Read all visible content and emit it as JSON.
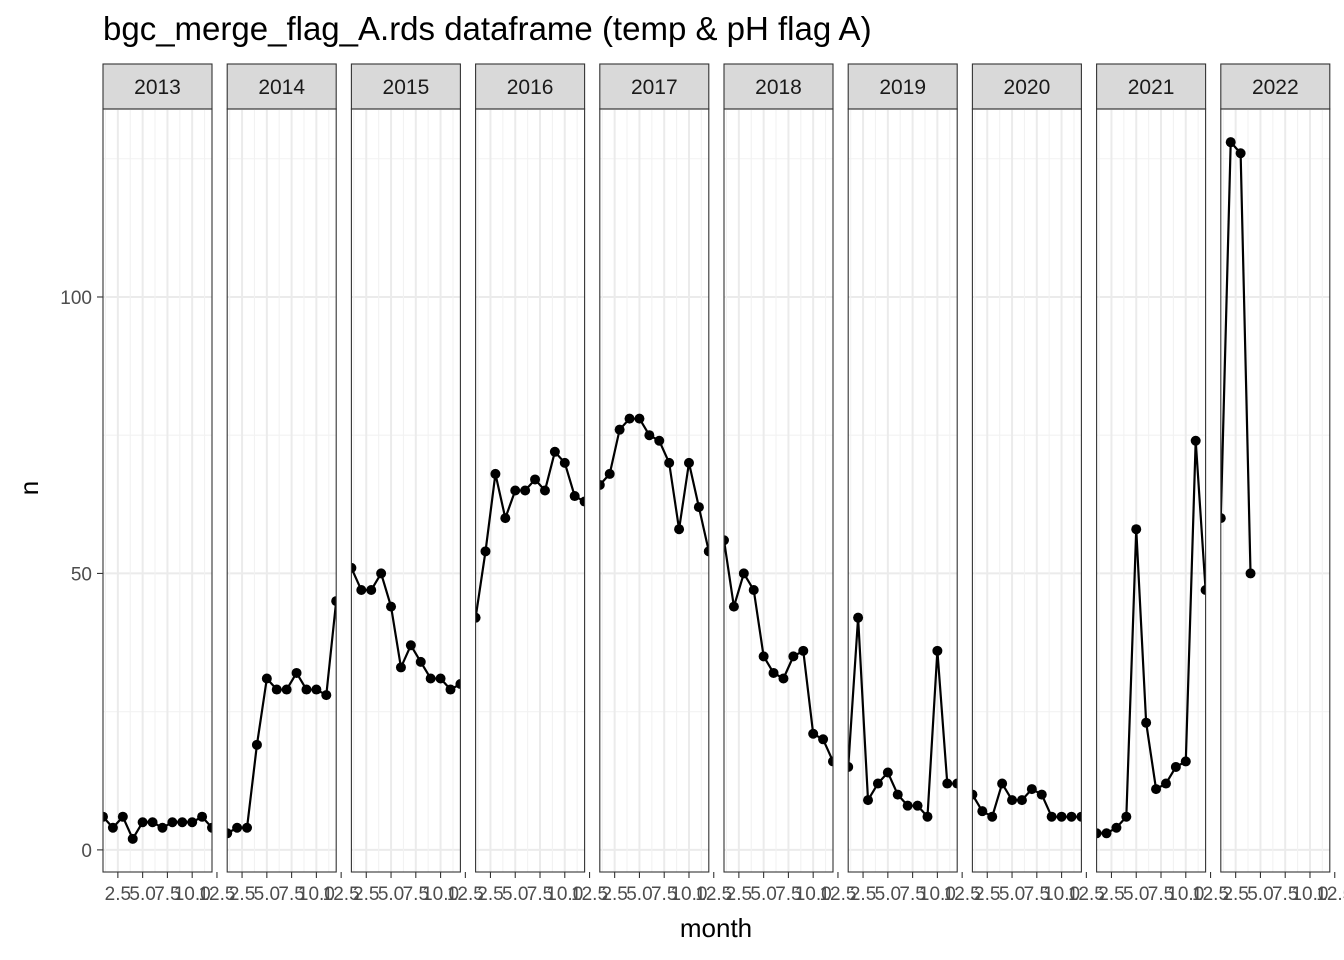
{
  "chart_data": {
    "type": "line",
    "title": "bgc_merge_flag_A.rds dataframe (temp & pH flag A)",
    "xlabel": "month",
    "ylabel": "n",
    "xlim": [
      1,
      12
    ],
    "ylim": [
      -4,
      134
    ],
    "x_ticks": [
      2.5,
      5.0,
      7.5,
      10.0,
      12.5
    ],
    "x_tick_labels": [
      "2.5",
      "5.0",
      "7.5",
      "10.0",
      "12.5"
    ],
    "y_ticks": [
      0,
      50,
      100
    ],
    "y_tick_labels": [
      "0",
      "50",
      "100"
    ],
    "grid": true,
    "facets": [
      {
        "label": "2013",
        "x": [
          1,
          2,
          3,
          4,
          5,
          6,
          7,
          8,
          9,
          10,
          11,
          12
        ],
        "y": [
          6,
          4,
          6,
          2,
          5,
          5,
          4,
          5,
          5,
          5,
          6,
          4
        ]
      },
      {
        "label": "2014",
        "x": [
          1,
          2,
          3,
          4,
          5,
          6,
          7,
          8,
          9,
          10,
          11,
          12
        ],
        "y": [
          3,
          4,
          4,
          19,
          31,
          29,
          29,
          32,
          29,
          29,
          28,
          45
        ]
      },
      {
        "label": "2015",
        "x": [
          1,
          2,
          3,
          4,
          5,
          6,
          7,
          8,
          9,
          10,
          11,
          12
        ],
        "y": [
          51,
          47,
          47,
          50,
          44,
          33,
          37,
          34,
          31,
          31,
          29,
          30
        ]
      },
      {
        "label": "2016",
        "x": [
          1,
          2,
          3,
          4,
          5,
          6,
          7,
          8,
          9,
          10,
          11,
          12
        ],
        "y": [
          42,
          54,
          68,
          60,
          65,
          65,
          67,
          65,
          72,
          70,
          64,
          63
        ]
      },
      {
        "label": "2017",
        "x": [
          1,
          2,
          3,
          4,
          5,
          6,
          7,
          8,
          9,
          10,
          11,
          12
        ],
        "y": [
          66,
          68,
          76,
          78,
          78,
          75,
          74,
          70,
          58,
          70,
          62,
          54
        ]
      },
      {
        "label": "2018",
        "x": [
          1,
          2,
          3,
          4,
          5,
          6,
          7,
          8,
          9,
          10,
          11,
          12
        ],
        "y": [
          56,
          44,
          50,
          47,
          35,
          32,
          31,
          35,
          36,
          21,
          20,
          16
        ]
      },
      {
        "label": "2019",
        "x": [
          1,
          2,
          3,
          4,
          5,
          6,
          7,
          8,
          9,
          10,
          11,
          12
        ],
        "y": [
          15,
          42,
          9,
          12,
          14,
          10,
          8,
          8,
          6,
          36,
          12,
          12
        ]
      },
      {
        "label": "2020",
        "x": [
          1,
          2,
          3,
          4,
          5,
          6,
          7,
          8,
          9,
          10,
          11,
          12
        ],
        "y": [
          10,
          7,
          6,
          12,
          9,
          9,
          11,
          10,
          6,
          6,
          6,
          6
        ]
      },
      {
        "label": "2021",
        "x": [
          1,
          2,
          3,
          4,
          5,
          6,
          7,
          8,
          9,
          10,
          11,
          12
        ],
        "y": [
          3,
          3,
          4,
          6,
          58,
          23,
          11,
          12,
          15,
          16,
          74,
          47
        ]
      },
      {
        "label": "2022",
        "x": [
          1,
          2,
          3,
          4
        ],
        "y": [
          60,
          128,
          126,
          50
        ]
      }
    ]
  }
}
